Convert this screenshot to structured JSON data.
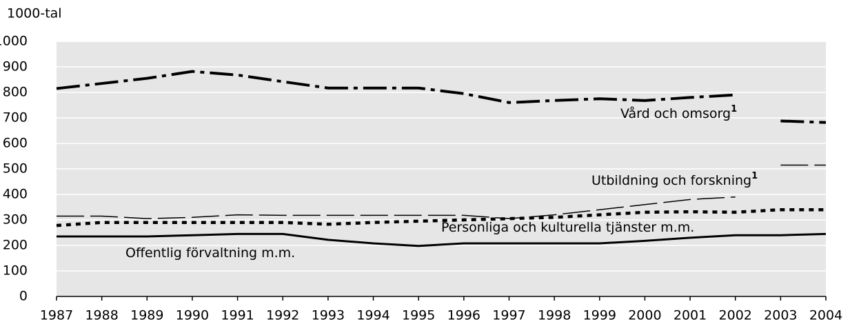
{
  "chart_data": {
    "type": "line",
    "ylabel": "1000-tal",
    "x": [
      1987,
      1988,
      1989,
      1990,
      1991,
      1992,
      1993,
      1994,
      1995,
      1996,
      1997,
      1998,
      1999,
      2000,
      2001,
      2002,
      2003,
      2004
    ],
    "xlim": [
      1987,
      2004
    ],
    "xticks": [
      1987,
      1988,
      1989,
      1990,
      1991,
      1992,
      1993,
      1994,
      1995,
      1996,
      1997,
      1998,
      1999,
      2000,
      2001,
      2002,
      2003,
      2004
    ],
    "ylim": [
      0,
      1000
    ],
    "yticks": [
      0,
      100,
      200,
      300,
      400,
      500,
      600,
      700,
      800,
      900,
      1000
    ],
    "grid": true,
    "series": [
      {
        "name": "Vård och omsorg",
        "footnote": "1",
        "color": "#000000",
        "break_after": "2002",
        "values": [
          815,
          835,
          855,
          882,
          868,
          842,
          817,
          817,
          817,
          795,
          760,
          768,
          775,
          768,
          780,
          790,
          688,
          682
        ]
      },
      {
        "name": "Utbildning och forskning",
        "footnote": "1",
        "color": "#000000",
        "break_after": "2002",
        "values": [
          315,
          315,
          305,
          310,
          320,
          318,
          318,
          318,
          318,
          318,
          305,
          320,
          340,
          360,
          380,
          390,
          515,
          515
        ]
      },
      {
        "name": "Personliga och kulturella tjänster m.m.",
        "color": "#000000",
        "values": [
          278,
          290,
          290,
          290,
          290,
          290,
          283,
          290,
          295,
          300,
          305,
          310,
          320,
          330,
          332,
          330,
          340,
          340
        ]
      },
      {
        "name": "Offentlig förvaltning m.m.",
        "color": "#000000",
        "values": [
          235,
          235,
          235,
          240,
          245,
          245,
          222,
          208,
          198,
          208,
          208,
          208,
          208,
          218,
          230,
          240,
          240,
          245
        ]
      }
    ]
  }
}
